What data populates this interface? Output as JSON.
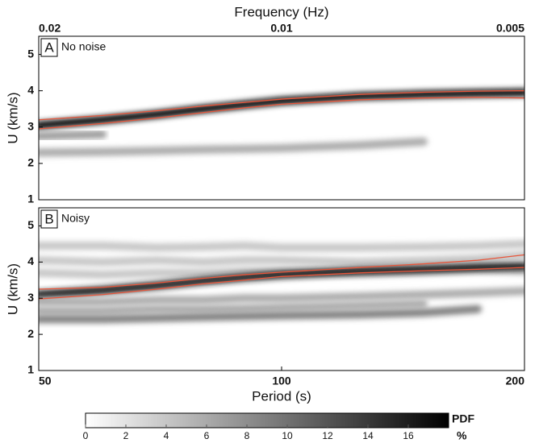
{
  "frequency_axis": {
    "label": "Frequency (Hz)",
    "xlim": [
      0.02,
      0.005
    ],
    "xticks": [
      0.02,
      0.01,
      0.005
    ],
    "log": true
  },
  "chart_data": [
    {
      "type": "heatmap",
      "letter": "A",
      "label": "No noise",
      "ylabel": "U (km/s)",
      "ylim": [
        1,
        5.5
      ],
      "yticks": [
        1,
        2,
        3,
        4,
        5
      ],
      "xlim": [
        50,
        200
      ],
      "xlog": true,
      "x": [
        50,
        60,
        70,
        80,
        90,
        100,
        125,
        150,
        175,
        200
      ],
      "ridges": [
        {
          "pdf": 17,
          "values": [
            3.05,
            3.2,
            3.35,
            3.5,
            3.62,
            3.72,
            3.85,
            3.9,
            3.93,
            3.95
          ]
        },
        {
          "pdf": 6,
          "values": [
            2.3,
            2.32,
            2.35,
            2.38,
            2.4,
            2.42,
            2.5,
            2.6,
            null,
            null
          ]
        },
        {
          "pdf": 7,
          "values": [
            2.75,
            2.8,
            null,
            null,
            null,
            null,
            null,
            null,
            null,
            null
          ]
        }
      ],
      "lines": [
        {
          "color": "#e8553a",
          "values": [
            3.2,
            3.32,
            3.45,
            3.58,
            3.68,
            3.77,
            3.9,
            3.96,
            3.99,
            4.0
          ]
        },
        {
          "color": "#e8553a",
          "values": [
            2.95,
            3.1,
            3.25,
            3.4,
            3.53,
            3.63,
            3.75,
            3.8,
            3.82,
            3.8
          ]
        }
      ]
    },
    {
      "type": "heatmap",
      "letter": "B",
      "label": "Noisy",
      "ylabel": "U (km/s)",
      "xlabel": "Period (s)",
      "ylim": [
        1,
        5.5
      ],
      "yticks": [
        1,
        2,
        3,
        4,
        5
      ],
      "xlim": [
        50,
        200
      ],
      "xticks": [
        50,
        100,
        200
      ],
      "xlog": true,
      "x": [
        50,
        60,
        70,
        80,
        90,
        100,
        125,
        150,
        175,
        200
      ],
      "ridges": [
        {
          "pdf": 4,
          "values": [
            4.45,
            4.45,
            4.4,
            4.42,
            4.45,
            4.4,
            4.4,
            4.42,
            4.45,
            4.5
          ]
        },
        {
          "pdf": 4,
          "values": [
            4.05,
            4.0,
            4.05,
            4.0,
            4.05,
            4.05,
            4.0,
            4.05,
            4.1,
            4.2
          ]
        },
        {
          "pdf": 4,
          "values": [
            3.7,
            3.65,
            3.7,
            3.7,
            3.75,
            3.75,
            3.7,
            3.75,
            3.8,
            3.75
          ]
        },
        {
          "pdf": 16,
          "values": [
            3.1,
            3.22,
            3.35,
            3.48,
            3.58,
            3.65,
            3.75,
            3.8,
            3.85,
            3.88
          ]
        },
        {
          "pdf": 6,
          "values": [
            2.9,
            2.9,
            2.95,
            2.95,
            3.0,
            3.0,
            3.05,
            3.1,
            3.15,
            3.2
          ]
        },
        {
          "pdf": 6,
          "values": [
            2.65,
            2.65,
            2.7,
            2.7,
            2.72,
            2.75,
            2.8,
            2.85,
            null,
            null
          ]
        },
        {
          "pdf": 9,
          "values": [
            2.42,
            2.42,
            2.45,
            2.48,
            2.5,
            2.52,
            2.55,
            2.6,
            2.7,
            null
          ]
        }
      ],
      "lines": [
        {
          "color": "#e8553a",
          "values": [
            3.25,
            3.3,
            3.42,
            3.55,
            3.65,
            3.72,
            3.85,
            3.95,
            4.05,
            4.2
          ]
        },
        {
          "color": "#e8553a",
          "values": [
            2.98,
            3.1,
            3.25,
            3.4,
            3.5,
            3.6,
            3.7,
            3.76,
            3.8,
            3.85
          ]
        }
      ]
    }
  ],
  "colorbar": {
    "title": "PDF",
    "unit": "%",
    "clim": [
      0,
      18
    ],
    "ticks": [
      0,
      2,
      4,
      6,
      8,
      10,
      12,
      14,
      16
    ]
  }
}
